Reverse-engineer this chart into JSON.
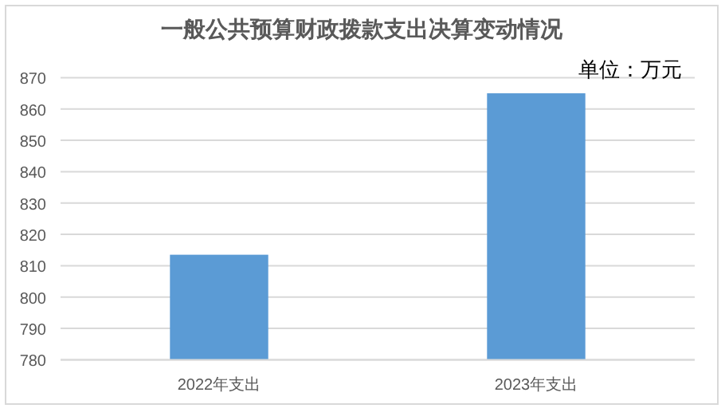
{
  "chart_data": {
    "type": "bar",
    "title": "一般公共预算财政拨款支出决算变动情况",
    "categories": [
      "2022年支出",
      "2023年支出"
    ],
    "series": [
      {
        "color": "#5b9bd5",
        "values": [
          813.5,
          865
        ]
      }
    ],
    "ylim": [
      780,
      870
    ],
    "yticks": [
      780,
      790,
      800,
      810,
      820,
      830,
      840,
      850,
      860,
      870
    ],
    "grid": "y",
    "annotations": [
      "单位：万元"
    ]
  }
}
